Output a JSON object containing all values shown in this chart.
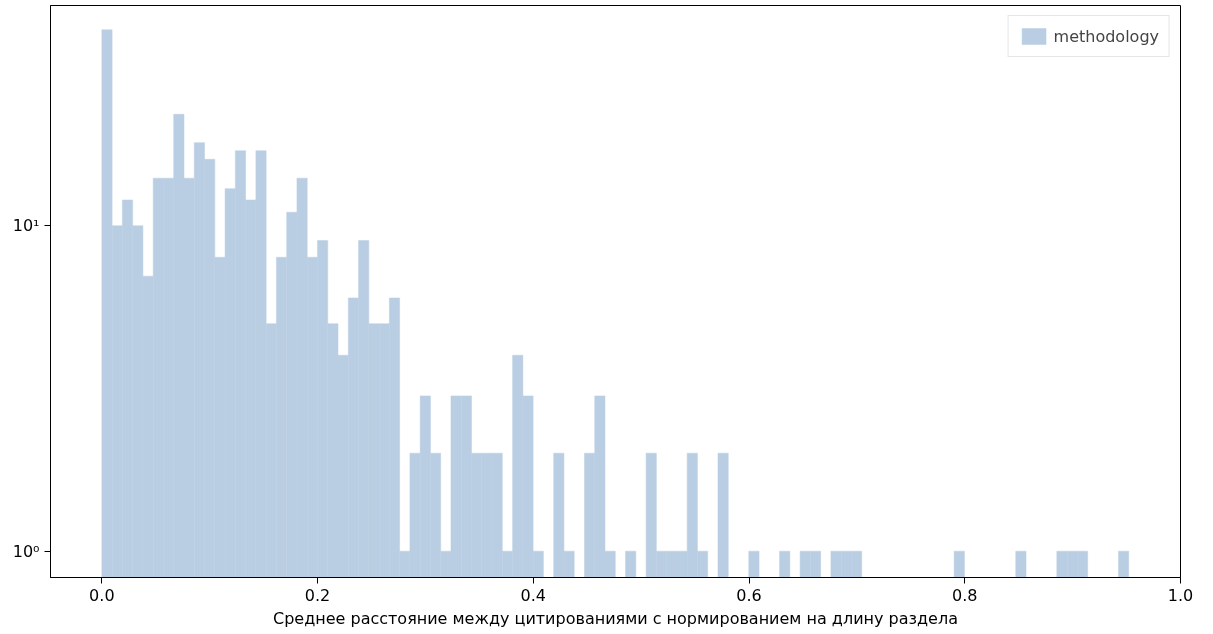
{
  "chart_data": {
    "type": "histogram",
    "xlabel": "Среднее расстояние между цитированиями с нормированием на длину раздела",
    "bins": [
      0.0,
      0.00952,
      0.01904,
      0.02856,
      0.03808,
      0.0476,
      0.05712,
      0.06664,
      0.07616,
      0.08568,
      0.0952,
      0.10472,
      0.11424,
      0.12376,
      0.13328,
      0.1428,
      0.15232,
      0.16184,
      0.17136,
      0.18088,
      0.1904,
      0.19992,
      0.20944,
      0.21896,
      0.22848,
      0.238,
      0.24752,
      0.25704,
      0.26656,
      0.27608,
      0.2856,
      0.29512,
      0.30464,
      0.31416,
      0.32368,
      0.3332,
      0.34272,
      0.35224,
      0.36176,
      0.37128,
      0.3808,
      0.39032,
      0.39984,
      0.40936,
      0.41888,
      0.4284,
      0.43792,
      0.44744,
      0.45696,
      0.46648,
      0.476,
      0.48552,
      0.49504,
      0.50456,
      0.51408,
      0.5236,
      0.53312,
      0.54264,
      0.55216,
      0.56168,
      0.5712,
      0.58072,
      0.59024,
      0.59976,
      0.60928,
      0.6188,
      0.62832,
      0.63784,
      0.64736,
      0.65688,
      0.6664,
      0.67592,
      0.68544,
      0.69496,
      0.70448,
      0.714,
      0.72352,
      0.73304,
      0.74256,
      0.75208,
      0.7616,
      0.77112,
      0.78064,
      0.79016,
      0.79968,
      0.8092,
      0.81872,
      0.82824,
      0.83776,
      0.84728,
      0.8568,
      0.86632,
      0.87584,
      0.88536,
      0.89488,
      0.9044,
      0.91392,
      0.92344,
      0.93296,
      0.94248,
      0.952
    ],
    "series": [
      {
        "name": "methodology",
        "color": "#bacee3",
        "values": [
          40,
          10,
          12,
          10,
          7,
          14,
          14,
          22,
          14,
          18,
          16,
          8,
          13,
          17,
          12,
          17,
          5,
          8,
          11,
          14,
          8,
          9,
          5,
          4,
          6,
          9,
          5,
          5,
          6,
          1,
          2,
          3,
          2,
          1,
          3,
          3,
          2,
          2,
          2,
          1,
          4,
          3,
          1,
          null,
          2,
          1,
          null,
          2,
          3,
          1,
          null,
          1,
          null,
          2,
          1,
          1,
          1,
          2,
          1,
          null,
          2,
          null,
          null,
          1,
          null,
          null,
          1,
          null,
          1,
          1,
          null,
          1,
          1,
          1,
          null,
          null,
          null,
          null,
          null,
          null,
          null,
          null,
          null,
          1,
          null,
          null,
          null,
          null,
          null,
          1,
          null,
          null,
          null,
          1,
          1,
          1,
          null,
          null,
          null,
          1
        ]
      }
    ],
    "log": "y",
    "xlim": [
      -0.0476,
      1.0
    ],
    "ylim": [
      0.83,
      47.5
    ],
    "xticks": [
      {
        "value": 0,
        "label": "0.0"
      },
      {
        "value": 0.2,
        "label": "0.2"
      },
      {
        "value": 0.4,
        "label": "0.4"
      },
      {
        "value": 0.6,
        "label": "0.6"
      },
      {
        "value": 0.8,
        "label": "0.8"
      },
      {
        "value": 1,
        "label": "1.0"
      }
    ],
    "yticks": [
      {
        "value": 1,
        "label": "10⁰"
      },
      {
        "value": 10,
        "label": "10¹"
      }
    ],
    "legend": "top right"
  }
}
